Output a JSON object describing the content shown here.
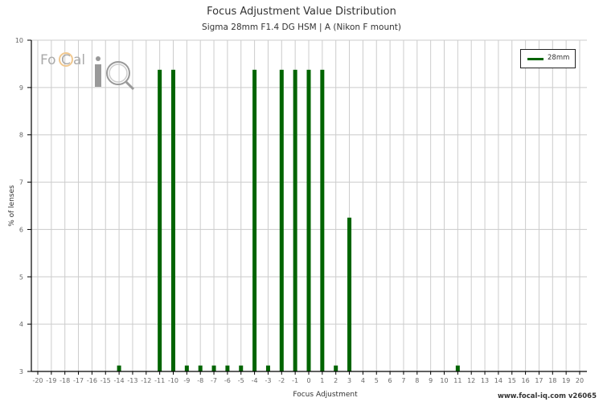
{
  "header": {
    "title": "Focus Adjustment Value Distribution",
    "subtitle": "Sigma 28mm F1.4 DG HSM | A (Nikon F mount)"
  },
  "logo": {
    "text_left": "Fo",
    "text_c": "C",
    "text_right": "al",
    "text_iq": "iQ"
  },
  "legend": {
    "label": "28mm",
    "color": "#006400"
  },
  "footer": {
    "text": "www.focal-iq.com  v26065"
  },
  "chart_data": {
    "type": "bar",
    "title": "Focus Adjustment Value Distribution",
    "subtitle": "Sigma 28mm F1.4 DG HSM | A (Nikon F mount)",
    "xlabel": "Focus Adjustment",
    "ylabel": "% of lenses",
    "xlim": [
      -20,
      20
    ],
    "ylim": [
      3,
      10
    ],
    "x_ticks": [
      -20,
      -19,
      -18,
      -17,
      -16,
      -15,
      -14,
      -13,
      -12,
      -11,
      -10,
      -9,
      -8,
      -7,
      -6,
      -5,
      -4,
      -3,
      -2,
      -1,
      0,
      1,
      2,
      3,
      4,
      5,
      6,
      7,
      8,
      9,
      10,
      11,
      12,
      13,
      14,
      15,
      16,
      17,
      18,
      19,
      20
    ],
    "y_ticks": [
      3,
      4,
      5,
      6,
      7,
      8,
      9,
      10
    ],
    "grid": true,
    "legend_position": "top-right",
    "series": [
      {
        "name": "28mm",
        "color": "#006400",
        "x": [
          -14,
          -11,
          -10,
          -9,
          -8,
          -7,
          -6,
          -5,
          -4,
          -3,
          -2,
          -1,
          0,
          1,
          2,
          3,
          11
        ],
        "values": [
          3.125,
          9.375,
          9.375,
          3.125,
          3.125,
          3.125,
          3.125,
          3.125,
          9.375,
          3.125,
          9.375,
          9.375,
          9.375,
          9.375,
          3.125,
          6.25,
          3.125
        ]
      }
    ]
  }
}
